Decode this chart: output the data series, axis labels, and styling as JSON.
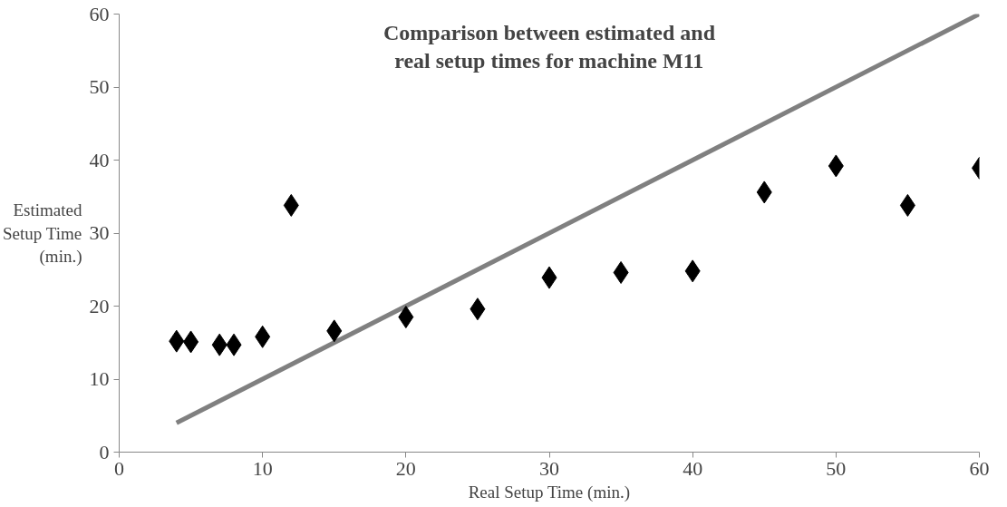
{
  "chart_data": {
    "type": "scatter",
    "title": "Comparison between estimated and\nreal setup times for machine M11",
    "xlabel": "Real Setup Time (min.)",
    "ylabel": "Estimated Setup Time (min.)",
    "series": [
      {
        "color": "#000000",
        "marker": "diamond",
        "x": [
          4,
          5,
          7,
          8,
          10,
          12,
          15,
          20,
          25,
          30,
          35,
          40,
          45,
          50,
          55,
          60
        ],
        "values": [
          15.2,
          15.1,
          14.7,
          14.7,
          15.8,
          33.8,
          16.6,
          18.5,
          19.6,
          23.9,
          24.6,
          24.8,
          35.6,
          39.2,
          33.8,
          38.9
        ]
      },
      {
        "type": "line",
        "color": "#808080",
        "marker": "none",
        "x": [
          4,
          60
        ],
        "values": [
          4,
          60
        ]
      }
    ],
    "xlim": [
      0,
      60
    ],
    "ylim": [
      0,
      60
    ],
    "xticks": [
      0,
      10,
      20,
      30,
      40,
      50,
      60
    ],
    "yticks": [
      0,
      10,
      20,
      30,
      40,
      50,
      60
    ],
    "grid": false
  }
}
